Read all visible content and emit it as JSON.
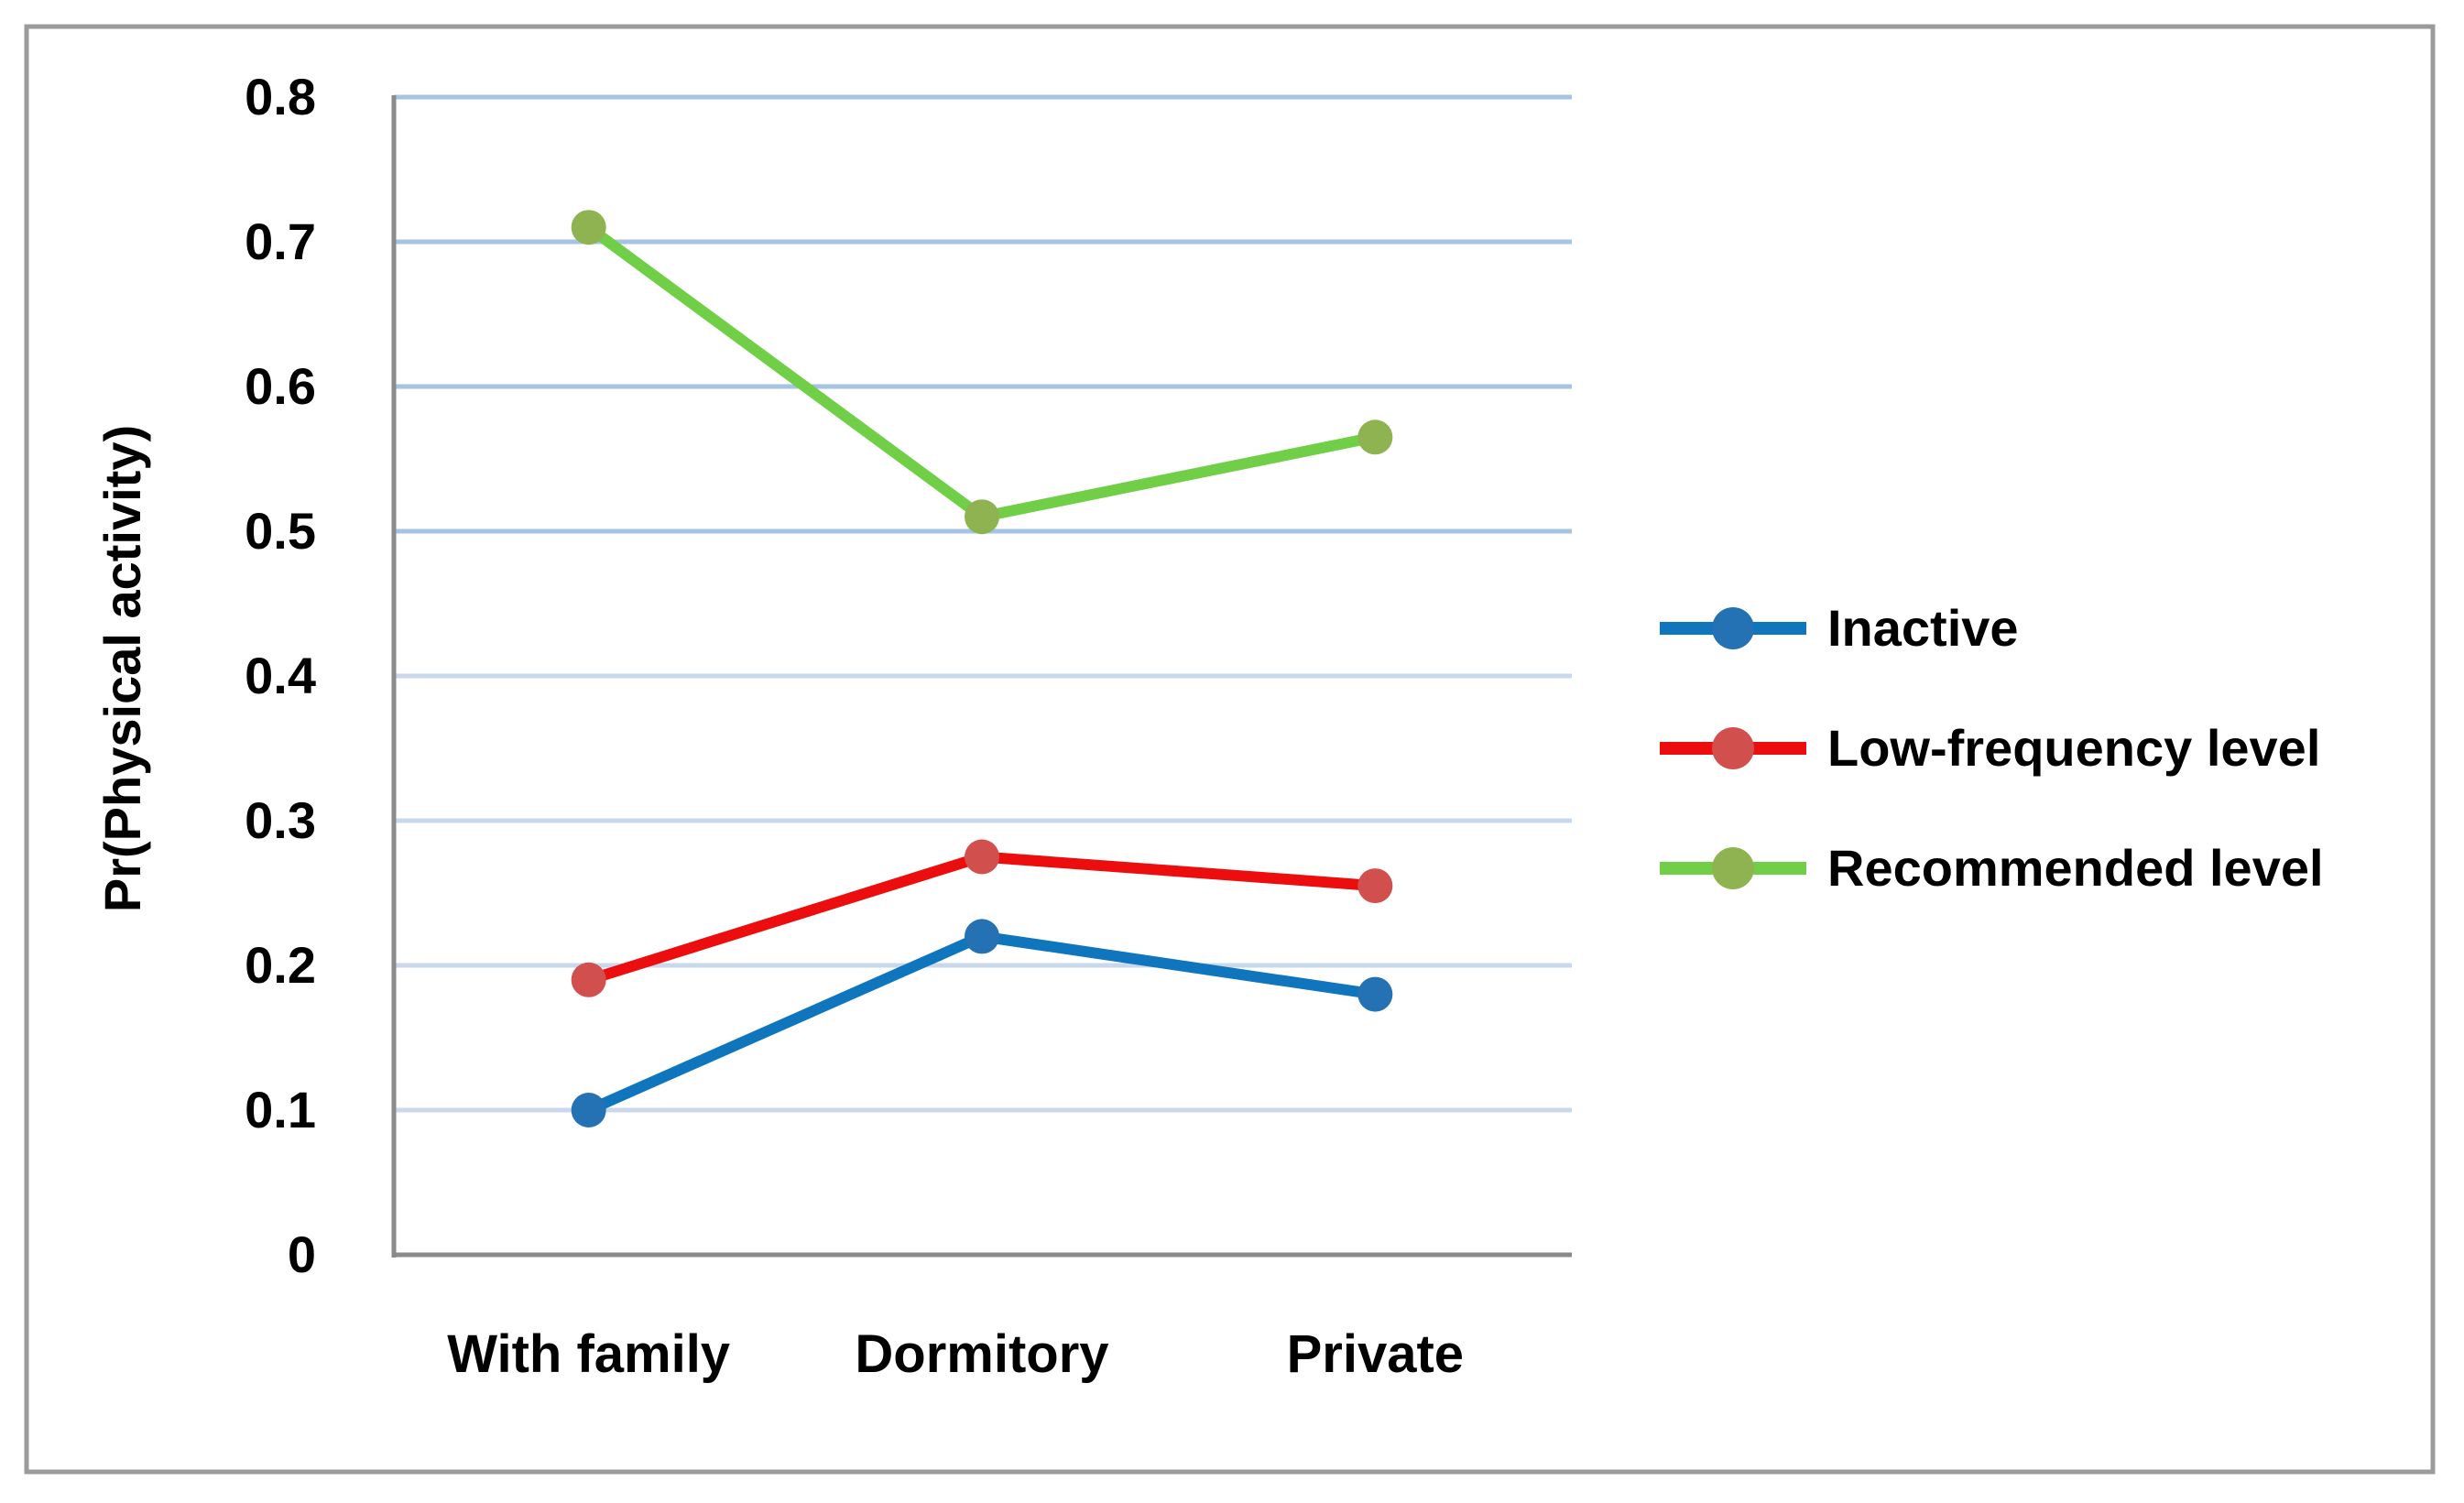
{
  "chart_data": {
    "type": "line",
    "title": "",
    "xlabel": "",
    "ylabel": "Pr(Physical activity)",
    "categories": [
      "With family",
      "Dormitory",
      "Private"
    ],
    "series": [
      {
        "name": "Inactive",
        "values": [
          0.1,
          0.22,
          0.18
        ],
        "line_color": "#0F76BE",
        "marker_color": "#2471B3"
      },
      {
        "name": "Low-frequency level",
        "values": [
          0.19,
          0.275,
          0.255
        ],
        "line_color": "#EC0D0F",
        "marker_color": "#D14F4D"
      },
      {
        "name": "Recommended level",
        "values": [
          0.71,
          0.51,
          0.565
        ],
        "line_color": "#70CE47",
        "marker_color": "#90B351"
      }
    ],
    "y_tick_values": [
      0,
      0.1,
      0.2,
      0.3,
      0.4,
      0.5,
      0.6,
      0.7,
      0.8
    ],
    "y_tick_labels": [
      "0",
      "0.1",
      "0.2",
      "0.3",
      "0.4",
      "0.5",
      "0.6",
      "0.7",
      "0.8"
    ],
    "ylim": [
      0,
      0.8
    ],
    "grid": true,
    "legend_position": "right",
    "colors": {
      "gridline_upper": "#A6C3E4",
      "gridline_lower": "#C9D8ED",
      "axis": "#8A8A8A",
      "outer_border": "#9B9B9B",
      "text": "#000000",
      "background": "#FFFFFF"
    }
  }
}
